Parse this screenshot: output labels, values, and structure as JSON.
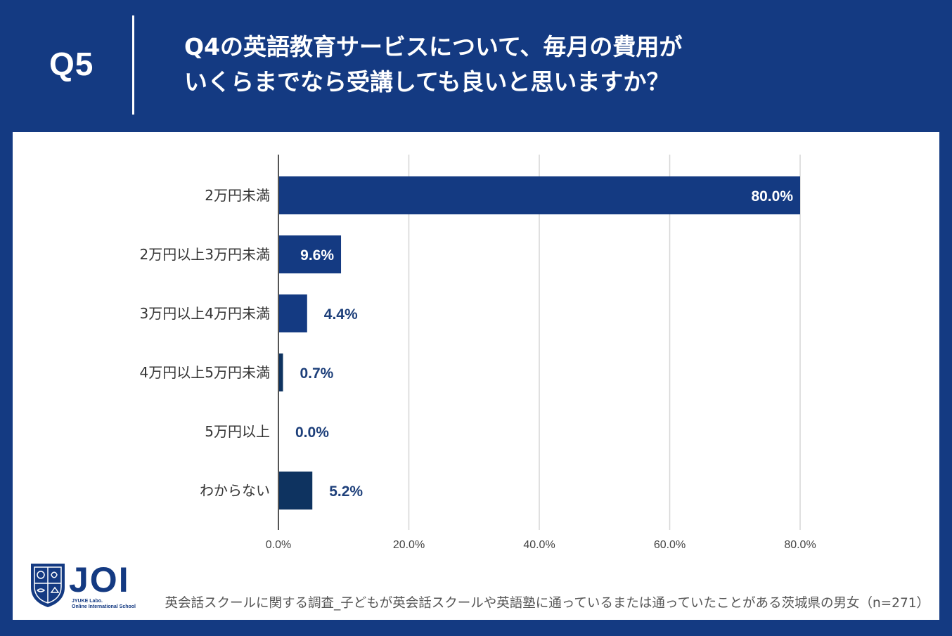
{
  "header": {
    "question_number": "Q5",
    "title_line1": "Q4の英語教育サービスについて、毎月の費用が",
    "title_line2": "いくらまでなら受講しても良いと思いますか？"
  },
  "colors": {
    "background": "#143a82",
    "bar_primary": "#143a82",
    "bar_secondary": "#0e3360",
    "label_inside": "#ffffff",
    "label_outside": "#1d3f7a"
  },
  "chart_data": {
    "type": "bar",
    "orientation": "horizontal",
    "categories": [
      "2万円未満",
      "2万円以上3万円未満",
      "3万円以上4万円未満",
      "4万円以上5万円未満",
      "5万円以上",
      "わからない"
    ],
    "values": [
      80.0,
      9.6,
      4.4,
      0.7,
      0.0,
      5.2
    ],
    "value_labels": [
      "80.0%",
      "9.6%",
      "4.4%",
      "0.7%",
      "0.0%",
      "5.2%"
    ],
    "xlim": [
      0,
      80
    ],
    "x_ticks": [
      0,
      20,
      40,
      60,
      80
    ],
    "x_tick_labels": [
      "0.0%",
      "20.0%",
      "40.0%",
      "60.0%",
      "80.0%"
    ],
    "grid": true,
    "legend": "none"
  },
  "logo": {
    "name": "JOI",
    "sub_line1": "JYUKE Labo.",
    "sub_line2": "Online International School"
  },
  "footer": {
    "source": "英会話スクールに関する調査_子どもが英会話スクールや英語塾に通っているまたは通っていたことがある茨城県の男女（n=271）"
  }
}
